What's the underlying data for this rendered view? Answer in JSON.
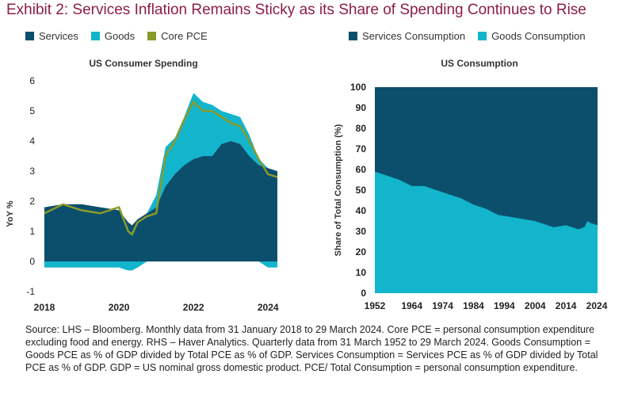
{
  "header": {
    "title": "Exhibit 2: Services Inflation Remains Sticky as its Share of Spending Continues to Rise"
  },
  "colors": {
    "services": "#0b4f6c",
    "goods": "#12b5cb",
    "core_pce": "#8a9a2b",
    "title": "#8c1d4a"
  },
  "legend_left": [
    {
      "label": "Services",
      "color": "#0b4f6c",
      "icon": "square-swatch"
    },
    {
      "label": "Goods",
      "color": "#12b5cb",
      "icon": "square-swatch"
    },
    {
      "label": "Core PCE",
      "color": "#8a9a2b",
      "icon": "square-swatch"
    }
  ],
  "legend_right": [
    {
      "label": "Services Consumption",
      "color": "#0b4f6c",
      "icon": "square-swatch"
    },
    {
      "label": "Goods Consumption",
      "color": "#12b5cb",
      "icon": "square-swatch"
    }
  ],
  "chart_data": [
    {
      "type": "area",
      "title": "US Consumer Spending",
      "ylabel": "YoY %",
      "xlabel": "",
      "ylim": [
        -1,
        6
      ],
      "yticks": [
        -1,
        0,
        1,
        2,
        3,
        4,
        5,
        6
      ],
      "xlim": [
        2018.0,
        2024.25
      ],
      "xticks": [
        2018,
        2020,
        2022,
        2024
      ],
      "x": [
        2018.0,
        2018.5,
        2019.0,
        2019.5,
        2020.0,
        2020.25,
        2020.35,
        2020.5,
        2020.75,
        2021.0,
        2021.25,
        2021.5,
        2021.75,
        2022.0,
        2022.25,
        2022.5,
        2022.75,
        2023.0,
        2023.25,
        2023.5,
        2023.75,
        2024.0,
        2024.25
      ],
      "series": [
        {
          "name": "Services",
          "values": [
            1.8,
            1.9,
            1.9,
            1.8,
            1.7,
            1.3,
            1.2,
            1.4,
            1.6,
            1.8,
            2.5,
            2.9,
            3.2,
            3.4,
            3.5,
            3.5,
            3.9,
            4.0,
            3.9,
            3.5,
            3.2,
            3.1,
            3.0
          ]
        },
        {
          "name": "Goods",
          "values": [
            -0.2,
            -0.2,
            -0.2,
            -0.2,
            -0.2,
            -0.3,
            -0.3,
            -0.2,
            0.0,
            0.4,
            1.3,
            1.2,
            1.6,
            2.2,
            1.8,
            1.7,
            1.1,
            0.9,
            0.9,
            0.7,
            0.2,
            -0.2,
            -0.2
          ]
        },
        {
          "name": "Core PCE",
          "values": [
            1.6,
            1.9,
            1.7,
            1.6,
            1.8,
            1.0,
            0.9,
            1.3,
            1.5,
            1.6,
            3.5,
            4.0,
            4.7,
            5.3,
            5.0,
            5.0,
            4.8,
            4.6,
            4.5,
            4.0,
            3.4,
            2.9,
            2.8
          ]
        }
      ]
    },
    {
      "type": "area",
      "title": "US Consumption",
      "ylabel": "Share of Total Consumption (%)",
      "xlabel": "",
      "ylim": [
        0,
        100
      ],
      "yticks": [
        0,
        10,
        20,
        30,
        40,
        50,
        60,
        70,
        80,
        90,
        100
      ],
      "xlim": [
        1952,
        2024.25
      ],
      "xticks": [
        1952,
        1964,
        1974,
        1984,
        1994,
        2004,
        2014,
        2024
      ],
      "x": [
        1952,
        1956,
        1960,
        1964,
        1968,
        1972,
        1976,
        1980,
        1984,
        1988,
        1992,
        1996,
        2000,
        2004,
        2008,
        2010,
        2014,
        2018,
        2020,
        2021,
        2022,
        2024.25
      ],
      "stacked_total": 100,
      "series": [
        {
          "name": "Goods Consumption",
          "values": [
            59,
            57,
            55,
            52,
            52,
            50,
            48,
            46,
            43,
            41,
            38,
            37,
            36,
            35,
            33,
            32,
            33,
            31,
            32,
            35,
            34,
            33
          ]
        },
        {
          "name": "Services Consumption",
          "values": [
            41,
            43,
            45,
            48,
            48,
            50,
            52,
            54,
            57,
            59,
            62,
            63,
            64,
            65,
            67,
            68,
            67,
            69,
            68,
            65,
            66,
            67
          ]
        }
      ]
    }
  ],
  "source_text": "Source: LHS – Bloomberg. Monthly data from 31 January 2018 to 29 March 2024. Core PCE = personal consumption expenditure excluding food and energy. RHS – Haver Analytics. Quarterly data from 31 March 1952 to 29 March 2024. Goods Consumption = Goods PCE as % of GDP divided by Total PCE as % of GDP. Services Consumption = Services PCE as % of GDP divided by Total PCE as % of GDP. GDP = US nominal gross domestic product. PCE/ Total Consumption = personal consumption expenditure."
}
